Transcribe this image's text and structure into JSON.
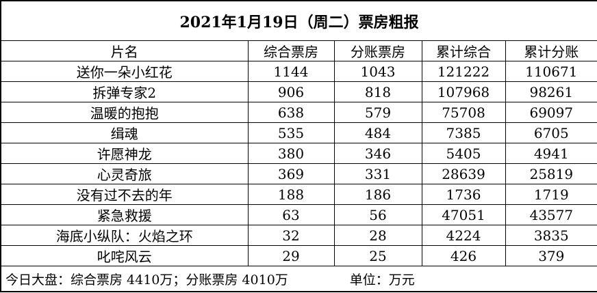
{
  "report": {
    "title": "2021年1月19日（周二）票房粗报",
    "columns": [
      "片名",
      "综合票房",
      "分账票房",
      "累计综合",
      "累计分账"
    ],
    "rows": [
      [
        "送你一朵小红花",
        "1144",
        "1043",
        "121222",
        "110671"
      ],
      [
        "拆弹专家2",
        "906",
        "818",
        "107968",
        "98261"
      ],
      [
        "温暖的抱抱",
        "638",
        "579",
        "75708",
        "69097"
      ],
      [
        "缉魂",
        "535",
        "484",
        "7385",
        "6705"
      ],
      [
        "许愿神龙",
        "380",
        "346",
        "5405",
        "4941"
      ],
      [
        "心灵奇旅",
        "369",
        "331",
        "28639",
        "25819"
      ],
      [
        "没有过不去的年",
        "188",
        "186",
        "1736",
        "1719"
      ],
      [
        "紧急救援",
        "63",
        "56",
        "47051",
        "43577"
      ],
      [
        "海底小纵队：火焰之环",
        "32",
        "28",
        "4224",
        "3835"
      ],
      [
        "叱咤风云",
        "29",
        "25",
        "426",
        "379"
      ]
    ],
    "footer_summary": "今日大盘：综合票房 4410万；分账票房 4010万",
    "footer_unit": "单位：万元"
  }
}
